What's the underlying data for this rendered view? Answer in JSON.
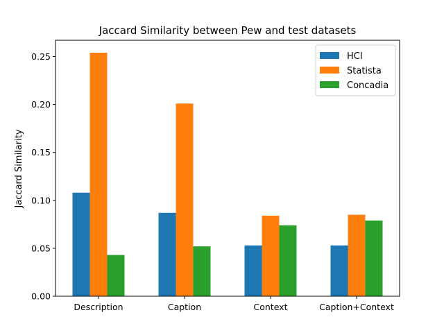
{
  "chart_data": {
    "type": "bar",
    "title": "Jaccard Similarity between Pew and test datasets",
    "xlabel": "",
    "ylabel": "Jaccard Similarity",
    "categories": [
      "Description",
      "Caption",
      "Context",
      "Caption+Context"
    ],
    "series": [
      {
        "name": "HCI",
        "color": "#1f77b4",
        "values": [
          0.108,
          0.087,
          0.053,
          0.053
        ]
      },
      {
        "name": "Statista",
        "color": "#ff7f0e",
        "values": [
          0.254,
          0.201,
          0.084,
          0.085
        ]
      },
      {
        "name": "Concadia",
        "color": "#2ca02c",
        "values": [
          0.043,
          0.052,
          0.074,
          0.079
        ]
      }
    ],
    "ylim": [
      0,
      0.267
    ],
    "yticks": [
      "0.00",
      "0.05",
      "0.10",
      "0.15",
      "0.20",
      "0.25"
    ],
    "grid": false,
    "legend_position": "upper right"
  }
}
